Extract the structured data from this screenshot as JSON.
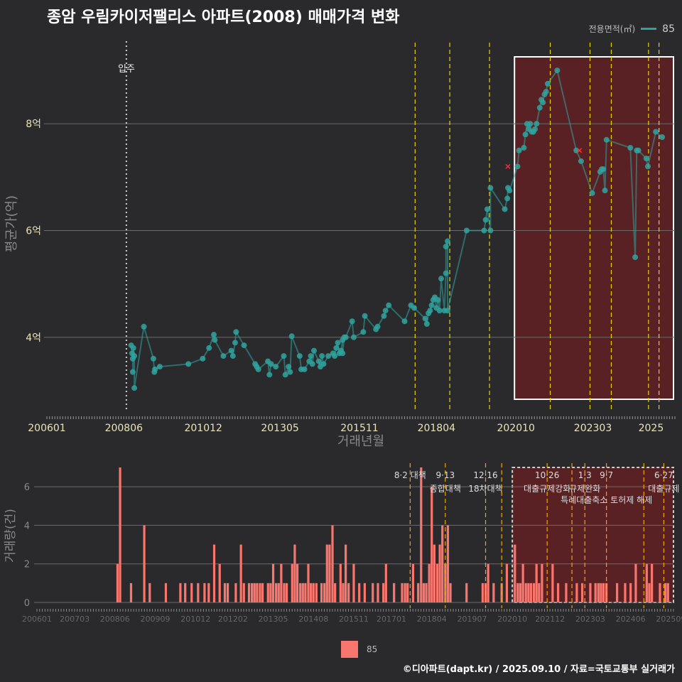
{
  "title": "종암 우림카이저팰리스 아파트(2008) 매매가격 변화",
  "legend_top": {
    "label": "전용면적(㎡)",
    "value": "85"
  },
  "legend_bottom": {
    "value": "85"
  },
  "caption": "©디아파트(dapt.kr) / 2025.09.10 / 자료=국토교통부 실거래가",
  "colors": {
    "line": "#2fa39f",
    "bar": "#f8766d",
    "policy": "#e6d200",
    "highlight": "#6b1f22",
    "background": "#2a2a2c"
  },
  "chart_data": [
    {
      "type": "line",
      "title": "종암 우림카이저팰리스 아파트(2008) 매매가격 변화",
      "xlabel": "거래년월",
      "ylabel": "평균가(억)",
      "x_range": [
        2006.0,
        2025.75
      ],
      "ylim": [
        2.6,
        9.6
      ],
      "x_ticks": [
        {
          "x": 2006.0,
          "label": "200601"
        },
        {
          "x": 2008.42,
          "label": "200806"
        },
        {
          "x": 2010.92,
          "label": "201012"
        },
        {
          "x": 2013.33,
          "label": "201305"
        },
        {
          "x": 2015.83,
          "label": "201511"
        },
        {
          "x": 2018.25,
          "label": "201804"
        },
        {
          "x": 2020.75,
          "label": "202010"
        },
        {
          "x": 2023.17,
          "label": "202303"
        },
        {
          "x": 2025.0,
          "label": "2025"
        }
      ],
      "y_ticks": [
        {
          "y": 4,
          "label": "4억"
        },
        {
          "y": 6,
          "label": "6억"
        },
        {
          "y": 8,
          "label": "8억"
        }
      ],
      "move_in": {
        "x": 2008.5,
        "label": "입주"
      },
      "policy_lines": [
        2017.58,
        2018.67,
        2019.92,
        2021.83,
        2023.08,
        2023.75,
        2024.92,
        2025.25
      ],
      "highlight_range": [
        2020.75,
        2025.75
      ],
      "series": [
        {
          "name": "85",
          "points": [
            [
              2008.65,
              3.85
            ],
            [
              2008.68,
              3.7
            ],
            [
              2008.7,
              3.6
            ],
            [
              2008.72,
              3.8
            ],
            [
              2008.75,
              3.65
            ],
            [
              2008.7,
              3.35
            ],
            [
              2008.75,
              3.05
            ],
            [
              2009.05,
              4.2
            ],
            [
              2009.35,
              3.6
            ],
            [
              2009.38,
              3.35
            ],
            [
              2009.4,
              3.4
            ],
            [
              2009.55,
              3.45
            ],
            [
              2010.45,
              3.5
            ],
            [
              2010.9,
              3.6
            ],
            [
              2011.1,
              3.8
            ],
            [
              2011.25,
              4.05
            ],
            [
              2011.28,
              3.95
            ],
            [
              2011.55,
              3.65
            ],
            [
              2011.8,
              3.75
            ],
            [
              2011.85,
              3.65
            ],
            [
              2011.95,
              4.1
            ],
            [
              2011.92,
              3.9
            ],
            [
              2012.2,
              3.85
            ],
            [
              2012.55,
              3.5
            ],
            [
              2012.6,
              3.45
            ],
            [
              2012.65,
              3.4
            ],
            [
              2012.95,
              3.55
            ],
            [
              2013.0,
              3.3
            ],
            [
              2013.05,
              3.5
            ],
            [
              2013.2,
              3.45
            ],
            [
              2013.45,
              3.65
            ],
            [
              2013.5,
              3.3
            ],
            [
              2013.6,
              3.45
            ],
            [
              2013.65,
              3.35
            ],
            [
              2013.7,
              4.02
            ],
            [
              2013.95,
              3.65
            ],
            [
              2014.0,
              3.4
            ],
            [
              2014.1,
              3.4
            ],
            [
              2014.25,
              3.55
            ],
            [
              2014.3,
              3.65
            ],
            [
              2014.35,
              3.5
            ],
            [
              2014.4,
              3.75
            ],
            [
              2014.55,
              3.55
            ],
            [
              2014.6,
              3.45
            ],
            [
              2014.65,
              3.65
            ],
            [
              2014.7,
              3.5
            ],
            [
              2014.85,
              3.65
            ],
            [
              2015.0,
              3.7
            ],
            [
              2015.05,
              3.65
            ],
            [
              2015.1,
              3.8
            ],
            [
              2015.15,
              3.9
            ],
            [
              2015.2,
              3.7
            ],
            [
              2015.25,
              3.75
            ],
            [
              2015.3,
              3.95
            ],
            [
              2015.35,
              4.0
            ],
            [
              2015.4,
              4.0
            ],
            [
              2015.3,
              3.7
            ],
            [
              2015.6,
              4.3
            ],
            [
              2015.65,
              4.0
            ],
            [
              2015.95,
              4.1
            ],
            [
              2016.0,
              4.4
            ],
            [
              2016.35,
              4.15
            ],
            [
              2016.4,
              4.2
            ],
            [
              2016.6,
              4.4
            ],
            [
              2016.65,
              4.5
            ],
            [
              2016.75,
              4.6
            ],
            [
              2017.25,
              4.3
            ],
            [
              2017.45,
              4.6
            ],
            [
              2017.55,
              4.55
            ],
            [
              2017.9,
              4.35
            ],
            [
              2017.95,
              4.25
            ],
            [
              2018.0,
              4.45
            ],
            [
              2018.05,
              4.5
            ],
            [
              2018.1,
              4.6
            ],
            [
              2018.15,
              4.7
            ],
            [
              2018.2,
              4.75
            ],
            [
              2018.25,
              4.55
            ],
            [
              2018.3,
              4.7
            ],
            [
              2018.35,
              4.5
            ],
            [
              2018.4,
              5.1
            ],
            [
              2018.5,
              4.5
            ],
            [
              2018.55,
              5.2
            ],
            [
              2018.55,
              5.7
            ],
            [
              2018.6,
              5.8
            ],
            [
              2018.6,
              4.5
            ],
            [
              2019.2,
              6.0
            ],
            [
              2019.75,
              6.0
            ],
            [
              2019.8,
              6.2
            ],
            [
              2019.85,
              6.4
            ],
            [
              2019.95,
              6.0
            ],
            [
              2019.95,
              6.8
            ],
            [
              2020.4,
              6.4
            ],
            [
              2020.48,
              6.6
            ],
            [
              2020.5,
              6.8
            ],
            [
              2020.55,
              6.75
            ],
            [
              2020.8,
              7.2
            ],
            [
              2020.85,
              7.5
            ],
            [
              2021.0,
              7.55
            ],
            [
              2021.05,
              7.8
            ],
            [
              2021.1,
              8.0
            ],
            [
              2021.15,
              7.9
            ],
            [
              2021.2,
              8.0
            ],
            [
              2021.25,
              7.85
            ],
            [
              2021.3,
              7.85
            ],
            [
              2021.35,
              7.9
            ],
            [
              2021.4,
              8.0
            ],
            [
              2021.5,
              8.3
            ],
            [
              2021.55,
              8.45
            ],
            [
              2021.6,
              8.4
            ],
            [
              2021.65,
              8.55
            ],
            [
              2021.7,
              8.6
            ],
            [
              2021.75,
              8.75
            ],
            [
              2022.05,
              9.0
            ],
            [
              2022.65,
              7.5
            ],
            [
              2022.8,
              7.3
            ],
            [
              2023.15,
              6.7
            ],
            [
              2023.4,
              7.1
            ],
            [
              2023.45,
              7.15
            ],
            [
              2023.5,
              7.15
            ],
            [
              2023.55,
              6.75
            ],
            [
              2023.6,
              7.7
            ],
            [
              2024.35,
              7.55
            ],
            [
              2024.5,
              5.5
            ],
            [
              2024.55,
              7.5
            ],
            [
              2024.6,
              7.5
            ],
            [
              2024.85,
              7.35
            ],
            [
              2024.9,
              7.2
            ],
            [
              2025.15,
              7.85
            ],
            [
              2025.35,
              7.75
            ]
          ]
        }
      ],
      "canceled_points": [
        [
          2020.5,
          7.2
        ],
        [
          2022.75,
          7.5
        ]
      ]
    },
    {
      "type": "bar",
      "ylabel": "거래량(건)",
      "ylim": [
        0,
        7
      ],
      "x_range": [
        2006.0,
        2025.75
      ],
      "y_ticks": [
        {
          "y": 0,
          "label": "0"
        },
        {
          "y": 2,
          "label": "2"
        },
        {
          "y": 4,
          "label": "4"
        },
        {
          "y": 6,
          "label": "6"
        }
      ],
      "x_ticks": [
        {
          "x": 2006.0,
          "label": "200601"
        },
        {
          "x": 2007.17,
          "label": "200703"
        },
        {
          "x": 2008.42,
          "label": "200806"
        },
        {
          "x": 2009.67,
          "label": "200909"
        },
        {
          "x": 2010.92,
          "label": "201012"
        },
        {
          "x": 2012.08,
          "label": "201202"
        },
        {
          "x": 2013.33,
          "label": "201305"
        },
        {
          "x": 2014.58,
          "label": "201408"
        },
        {
          "x": 2015.83,
          "label": "201511"
        },
        {
          "x": 2017.0,
          "label": "201701"
        },
        {
          "x": 2018.25,
          "label": "201804"
        },
        {
          "x": 2019.5,
          "label": "201907"
        },
        {
          "x": 2020.75,
          "label": "202010"
        },
        {
          "x": 2021.92,
          "label": "202112"
        },
        {
          "x": 2023.17,
          "label": "202303"
        },
        {
          "x": 2024.42,
          "label": "202406"
        },
        {
          "x": 2025.67,
          "label": "202509"
        }
      ],
      "highlight_range": [
        2020.75,
        2025.75
      ],
      "policies": [
        {
          "x": 2017.58,
          "line1": "8·2 대책",
          "line2": ""
        },
        {
          "x": 2018.67,
          "line1": "9·13",
          "line2": "종합대책"
        },
        {
          "x": 2019.92,
          "line1": "12·16",
          "line2": "18차대책"
        },
        {
          "x": 2020.42,
          "line1": "",
          "line2": ""
        },
        {
          "x": 2021.83,
          "line1": "10·26",
          "line2": "대출규제강화"
        },
        {
          "x": 2022.6,
          "line1": "",
          "line2": ""
        },
        {
          "x": 2023.0,
          "line1": "1·3",
          "line2": "규제완화"
        },
        {
          "x": 2023.67,
          "line1": "9·7",
          "line2": "특례대출축소 토허제 해제"
        },
        {
          "x": 2024.83,
          "line1": "",
          "line2": ""
        },
        {
          "x": 2025.45,
          "line1": "6·27",
          "line2": "대출규제"
        }
      ],
      "bars": [
        [
          2008.5,
          2
        ],
        [
          2008.58,
          7
        ],
        [
          2008.92,
          1
        ],
        [
          2009.33,
          4
        ],
        [
          2009.5,
          1
        ],
        [
          2010.0,
          1
        ],
        [
          2010.45,
          1
        ],
        [
          2010.6,
          1
        ],
        [
          2010.8,
          1
        ],
        [
          2011.0,
          1
        ],
        [
          2011.2,
          1
        ],
        [
          2011.33,
          1
        ],
        [
          2011.5,
          3
        ],
        [
          2011.67,
          2
        ],
        [
          2011.83,
          1
        ],
        [
          2011.92,
          1
        ],
        [
          2012.17,
          1
        ],
        [
          2012.33,
          3
        ],
        [
          2012.42,
          1
        ],
        [
          2012.58,
          1
        ],
        [
          2012.67,
          1
        ],
        [
          2012.75,
          1
        ],
        [
          2012.83,
          1
        ],
        [
          2012.92,
          1
        ],
        [
          2013.0,
          1
        ],
        [
          2013.17,
          1
        ],
        [
          2013.25,
          1
        ],
        [
          2013.33,
          2
        ],
        [
          2013.42,
          1
        ],
        [
          2013.5,
          1
        ],
        [
          2013.58,
          2
        ],
        [
          2013.67,
          1
        ],
        [
          2013.75,
          1
        ],
        [
          2013.92,
          2
        ],
        [
          2014.0,
          3
        ],
        [
          2014.08,
          2
        ],
        [
          2014.17,
          1
        ],
        [
          2014.25,
          1
        ],
        [
          2014.33,
          1
        ],
        [
          2014.42,
          2
        ],
        [
          2014.5,
          1
        ],
        [
          2014.58,
          1
        ],
        [
          2014.67,
          1
        ],
        [
          2014.83,
          1
        ],
        [
          2014.92,
          1
        ],
        [
          2015.0,
          3
        ],
        [
          2015.08,
          3
        ],
        [
          2015.17,
          4
        ],
        [
          2015.25,
          1
        ],
        [
          2015.42,
          2
        ],
        [
          2015.5,
          1
        ],
        [
          2015.58,
          3
        ],
        [
          2015.67,
          1
        ],
        [
          2015.83,
          2
        ],
        [
          2016.0,
          1
        ],
        [
          2016.17,
          1
        ],
        [
          2016.42,
          1
        ],
        [
          2016.58,
          1
        ],
        [
          2016.75,
          1
        ],
        [
          2016.83,
          2
        ],
        [
          2017.08,
          1
        ],
        [
          2017.33,
          1
        ],
        [
          2017.42,
          1
        ],
        [
          2017.5,
          1
        ],
        [
          2017.67,
          2
        ],
        [
          2017.83,
          1
        ],
        [
          2017.92,
          7
        ],
        [
          2018.0,
          1
        ],
        [
          2018.08,
          1
        ],
        [
          2018.17,
          2
        ],
        [
          2018.25,
          6
        ],
        [
          2018.33,
          3
        ],
        [
          2018.42,
          2
        ],
        [
          2018.5,
          3
        ],
        [
          2018.58,
          4
        ],
        [
          2018.67,
          2
        ],
        [
          2018.75,
          4
        ],
        [
          2018.83,
          1
        ],
        [
          2019.33,
          1
        ],
        [
          2019.83,
          1
        ],
        [
          2019.92,
          1
        ],
        [
          2020.0,
          2
        ],
        [
          2020.17,
          1
        ],
        [
          2020.42,
          1
        ],
        [
          2020.58,
          2
        ],
        [
          2020.83,
          3
        ],
        [
          2020.92,
          1
        ],
        [
          2021.0,
          1
        ],
        [
          2021.08,
          2
        ],
        [
          2021.17,
          1
        ],
        [
          2021.25,
          1
        ],
        [
          2021.33,
          1
        ],
        [
          2021.42,
          1
        ],
        [
          2021.5,
          2
        ],
        [
          2021.58,
          1
        ],
        [
          2021.67,
          2
        ],
        [
          2022.0,
          2
        ],
        [
          2022.17,
          1
        ],
        [
          2022.42,
          1
        ],
        [
          2022.75,
          1
        ],
        [
          2022.92,
          1
        ],
        [
          2023.17,
          1
        ],
        [
          2023.33,
          1
        ],
        [
          2023.42,
          1
        ],
        [
          2023.5,
          1
        ],
        [
          2023.58,
          1
        ],
        [
          2023.67,
          1
        ],
        [
          2024.0,
          1
        ],
        [
          2024.25,
          1
        ],
        [
          2024.42,
          1
        ],
        [
          2024.58,
          2
        ],
        [
          2024.92,
          2
        ],
        [
          2025.0,
          1
        ],
        [
          2025.08,
          2
        ],
        [
          2025.33,
          1
        ],
        [
          2025.5,
          1
        ],
        [
          2025.58,
          1
        ]
      ]
    }
  ]
}
